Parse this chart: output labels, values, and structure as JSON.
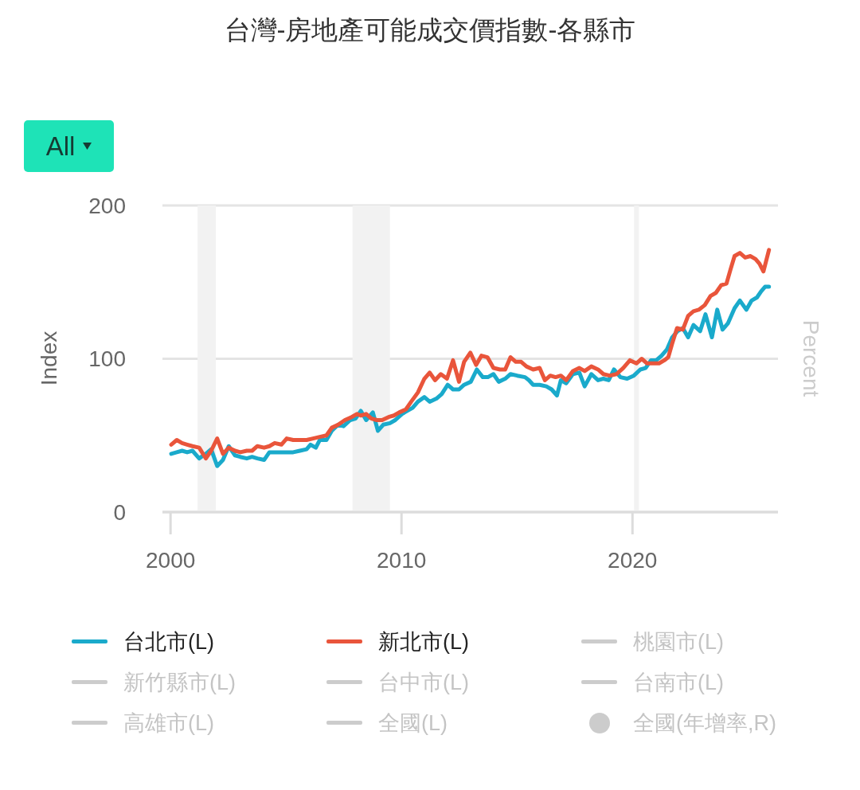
{
  "chart_data": {
    "type": "line",
    "title": "台灣-房地產可能成交價指數-各縣市",
    "ylabel": "Index",
    "y2label": "Percent",
    "annotations": [
      "All"
    ],
    "xlim": [
      1999.65,
      2026.3
    ],
    "xticks": [
      2000,
      2010,
      2020
    ],
    "ylim": [
      0,
      200
    ],
    "yticks": [
      0,
      100,
      200
    ],
    "grid": "y",
    "legend": "bottom",
    "bands": [
      {
        "axis": "x",
        "from": 2001.17,
        "to": 2001.96,
        "color": "#f2f2f2"
      },
      {
        "axis": "x",
        "from": 2007.88,
        "to": 2009.5,
        "color": "#f2f2f2"
      },
      {
        "axis": "x",
        "from": 2020.07,
        "to": 2020.28,
        "color": "#f2f2f2"
      }
    ],
    "series": [
      {
        "name": "台北市(L)",
        "color": "#1aaacb",
        "x": [
          2000.03,
          2000.27,
          2000.5,
          2000.72,
          2000.95,
          2001.24,
          2001.53,
          2001.76,
          2002.02,
          2002.27,
          2002.52,
          2002.79,
          2003.02,
          2003.3,
          2003.53,
          2003.76,
          2004.05,
          2004.28,
          2004.51,
          2004.8,
          2005.03,
          2005.31,
          2005.6,
          2005.89,
          2006.06,
          2006.29,
          2006.46,
          2006.75,
          2006.98,
          2007.26,
          2007.49,
          2007.78,
          2008.01,
          2008.24,
          2008.47,
          2008.76,
          2008.98,
          2009.21,
          2009.5,
          2009.73,
          2010.02,
          2010.25,
          2010.48,
          2010.71,
          2010.99,
          2011.22,
          2011.51,
          2011.74,
          2012.0,
          2012.23,
          2012.49,
          2012.71,
          2013.0,
          2013.26,
          2013.52,
          2013.74,
          2013.98,
          2014.21,
          2014.49,
          2014.72,
          2015.01,
          2015.35,
          2015.52,
          2015.7,
          2015.98,
          2016.27,
          2016.5,
          2016.73,
          2016.9,
          2017.13,
          2017.42,
          2017.7,
          2017.93,
          2018.22,
          2018.51,
          2018.74,
          2018.97,
          2019.2,
          2019.48,
          2019.77,
          2020.06,
          2020.34,
          2020.57,
          2020.8,
          2021.03,
          2021.26,
          2021.49,
          2021.72,
          2021.95,
          2022.18,
          2022.41,
          2022.64,
          2022.93,
          2023.16,
          2023.44,
          2023.67,
          2023.9,
          2024.13,
          2024.42,
          2024.65,
          2024.93,
          2025.16,
          2025.39,
          2025.57,
          2025.74,
          2025.91
        ],
        "values": [
          38,
          39,
          40,
          39,
          40,
          35,
          38,
          41,
          30,
          34,
          43,
          37,
          36,
          35,
          36,
          35,
          34,
          39,
          39,
          39,
          39,
          39,
          40,
          41,
          44,
          42,
          47,
          47,
          53,
          57,
          56,
          60,
          61,
          66,
          60,
          65,
          53,
          57,
          58,
          60,
          64,
          66,
          68,
          72,
          75,
          72,
          74,
          77,
          83,
          80,
          80,
          83,
          85,
          93,
          88,
          88,
          90,
          85,
          87,
          90,
          89,
          88,
          86,
          83,
          83,
          82,
          80,
          76,
          86,
          84,
          90,
          91,
          82,
          90,
          86,
          87,
          86,
          93,
          88,
          87,
          89,
          93,
          94,
          99,
          99,
          102,
          106,
          114,
          118,
          120,
          114,
          122,
          118,
          129,
          114,
          132,
          119,
          123,
          133,
          138,
          132,
          138,
          140,
          144,
          147,
          147
        ]
      },
      {
        "name": "新北市(L)",
        "color": "#e9553b",
        "x": [
          2000.03,
          2000.27,
          2000.5,
          2000.72,
          2000.95,
          2001.24,
          2001.53,
          2001.76,
          2002.02,
          2002.27,
          2002.52,
          2002.79,
          2003.02,
          2003.3,
          2003.53,
          2003.76,
          2004.05,
          2004.28,
          2004.51,
          2004.8,
          2005.03,
          2005.31,
          2005.6,
          2005.89,
          2006.17,
          2006.46,
          2006.75,
          2006.98,
          2007.26,
          2007.55,
          2007.84,
          2008.07,
          2008.24,
          2008.47,
          2008.7,
          2008.93,
          2009.16,
          2009.44,
          2009.67,
          2009.9,
          2010.19,
          2010.42,
          2010.71,
          2010.99,
          2011.22,
          2011.45,
          2011.7,
          2011.97,
          2012.23,
          2012.49,
          2012.71,
          2012.98,
          2013.23,
          2013.46,
          2013.72,
          2013.98,
          2014.26,
          2014.49,
          2014.72,
          2014.95,
          2015.18,
          2015.41,
          2015.7,
          2015.98,
          2016.21,
          2016.44,
          2016.67,
          2016.9,
          2017.13,
          2017.42,
          2017.7,
          2017.93,
          2018.22,
          2018.51,
          2018.74,
          2019.02,
          2019.31,
          2019.6,
          2019.89,
          2020.17,
          2020.4,
          2020.63,
          2020.86,
          2021.15,
          2021.38,
          2021.55,
          2021.72,
          2021.93,
          2022.18,
          2022.41,
          2022.64,
          2022.87,
          2023.13,
          2023.38,
          2023.61,
          2023.84,
          2024.07,
          2024.24,
          2024.42,
          2024.65,
          2024.88,
          2025.11,
          2025.33,
          2025.5,
          2025.67,
          2025.91
        ],
        "values": [
          44,
          47,
          45,
          44,
          43,
          42,
          35,
          40,
          48,
          38,
          42,
          40,
          39,
          40,
          40,
          43,
          42,
          43,
          45,
          44,
          48,
          47,
          47,
          47,
          48,
          49,
          50,
          55,
          57,
          60,
          62,
          64,
          63,
          64,
          61,
          60,
          60,
          62,
          63,
          65,
          67,
          72,
          78,
          87,
          91,
          86,
          90,
          87,
          99,
          85,
          98,
          104,
          96,
          102,
          101,
          94,
          93,
          93,
          101,
          98,
          98,
          95,
          93,
          94,
          86,
          89,
          88,
          89,
          86,
          92,
          94,
          92,
          95,
          93,
          90,
          89,
          90,
          94,
          99,
          97,
          100,
          97,
          97,
          97,
          99,
          101,
          110,
          120,
          119,
          128,
          131,
          132,
          135,
          141,
          143,
          148,
          149,
          158,
          167,
          169,
          166,
          167,
          165,
          162,
          157,
          171
        ]
      },
      {
        "name": "桃園市(L)",
        "type": "line",
        "color": "#cccccc"
      },
      {
        "name": "新竹縣市(L)",
        "type": "line",
        "color": "#cccccc"
      },
      {
        "name": "台中市(L)",
        "type": "line",
        "color": "#cccccc"
      },
      {
        "name": "台南市(L)",
        "type": "line",
        "color": "#cccccc"
      },
      {
        "name": "高雄市(L)",
        "type": "line",
        "color": "#cccccc"
      },
      {
        "name": "全國(L)",
        "type": "line",
        "color": "#cccccc"
      },
      {
        "name": "全國(年增率,R)",
        "type": "scatter",
        "marker": "circle",
        "axis": "y2",
        "color": "#cccccc"
      }
    ]
  }
}
